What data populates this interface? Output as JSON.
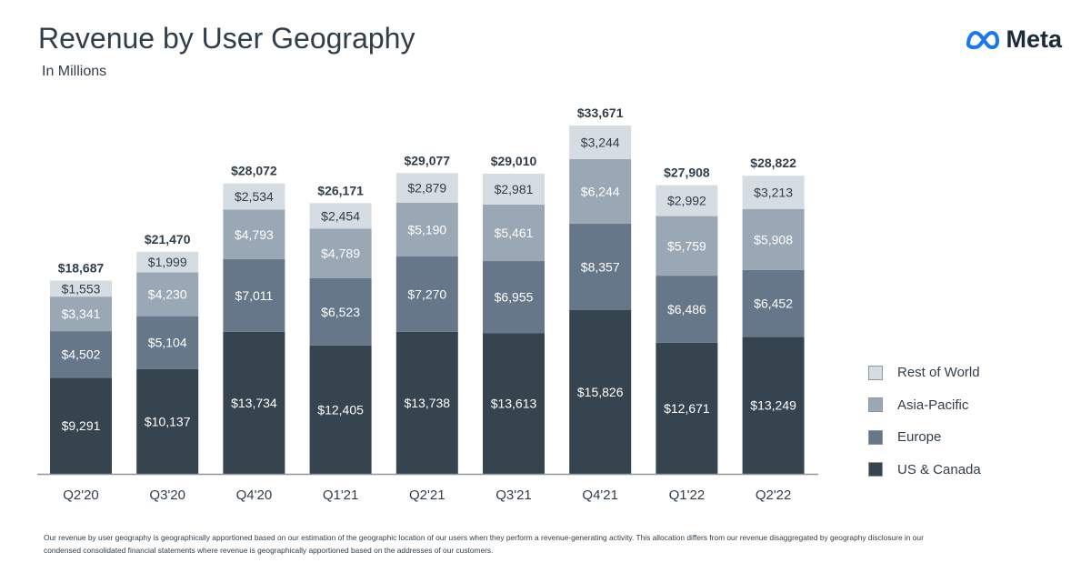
{
  "header": {
    "title": "Revenue by User Geography",
    "subtitle": "In Millions",
    "logo_text": "Meta"
  },
  "chart_data": {
    "type": "bar",
    "stacked": true,
    "title": "Revenue by User Geography",
    "subtitle": "In Millions",
    "categories": [
      "Q2'20",
      "Q3'20",
      "Q4'20",
      "Q1'21",
      "Q2'21",
      "Q3'21",
      "Q4'21",
      "Q1'22",
      "Q2'22"
    ],
    "totals": [
      "$18,687",
      "$21,470",
      "$28,072",
      "$26,171",
      "$29,077",
      "$29,010",
      "$33,671",
      "$27,908",
      "$28,822"
    ],
    "total_values": [
      18687,
      21470,
      28072,
      26171,
      29077,
      29010,
      33671,
      27908,
      28822
    ],
    "series": [
      {
        "name": "US & Canada",
        "color": "#36444f",
        "label_color": "#ffffff",
        "values": [
          9291,
          10137,
          13734,
          12405,
          13738,
          13613,
          15826,
          12671,
          13249
        ],
        "labels": [
          "$9,291",
          "$10,137",
          "$13,734",
          "$12,405",
          "$13,738",
          "$13,613",
          "$15,826",
          "$12,671",
          "$13,249"
        ]
      },
      {
        "name": "Europe",
        "color": "#66778a",
        "label_color": "#ffffff",
        "values": [
          4502,
          5104,
          7011,
          6523,
          7270,
          6955,
          8357,
          6486,
          6452
        ],
        "labels": [
          "$4,502",
          "$5,104",
          "$7,011",
          "$6,523",
          "$7,270",
          "$6,955",
          "$8,357",
          "$6,486",
          "$6,452"
        ]
      },
      {
        "name": "Asia-Pacific",
        "color": "#9aa8b5",
        "label_color": "#ffffff",
        "values": [
          3341,
          4230,
          4793,
          4789,
          5190,
          5461,
          6244,
          5759,
          5908
        ],
        "labels": [
          "$3,341",
          "$4,230",
          "$4,793",
          "$4,789",
          "$5,190",
          "$5,461",
          "$6,244",
          "$5,759",
          "$5,908"
        ]
      },
      {
        "name": "Rest of World",
        "color": "#d5dce2",
        "label_color": "#2f3e4a",
        "values": [
          1553,
          1999,
          2534,
          2454,
          2879,
          2981,
          3244,
          2992,
          3213
        ],
        "labels": [
          "$1,553",
          "$1,999",
          "$2,534",
          "$2,454",
          "$2,879",
          "$2,981",
          "$3,244",
          "$2,992",
          "$3,213"
        ]
      }
    ],
    "legend_position": "right",
    "grid": false
  },
  "legend": {
    "items": [
      {
        "label": "Rest of World",
        "color": "#d5dce2"
      },
      {
        "label": "Asia-Pacific",
        "color": "#9aa8b5"
      },
      {
        "label": "Europe",
        "color": "#66778a"
      },
      {
        "label": "US & Canada",
        "color": "#36444f"
      }
    ]
  },
  "footnote": {
    "line1": "Our revenue by user geography is geographically apportioned based on our estimation of the geographic location of our users when they perform a revenue-generating activity. This allocation differs from our revenue disaggregated by geography disclosure in our",
    "line2": "condensed consolidated financial statements where revenue is geographically apportioned based on the addresses of our customers."
  }
}
